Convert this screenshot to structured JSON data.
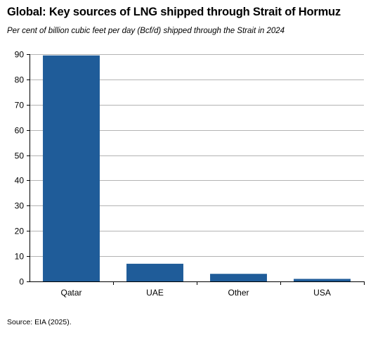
{
  "title": "Global: Key sources of LNG shipped through Strait of Hormuz",
  "subtitle": "Per cent of billion cubic feet per day (Bcf/d)  shipped through the Strait in 2024",
  "source": "Source: EIA (2025).",
  "chart_data": {
    "type": "bar",
    "categories": [
      "Qatar",
      "UAE",
      "Other",
      "USA"
    ],
    "values": [
      89.5,
      7,
      3,
      1
    ],
    "ylim": [
      0,
      90
    ],
    "yticks": [
      0,
      10,
      20,
      30,
      40,
      50,
      60,
      70,
      80,
      90
    ],
    "grid": true,
    "bar_color": "#1f5c99",
    "grid_color": "#b3b3b3"
  }
}
